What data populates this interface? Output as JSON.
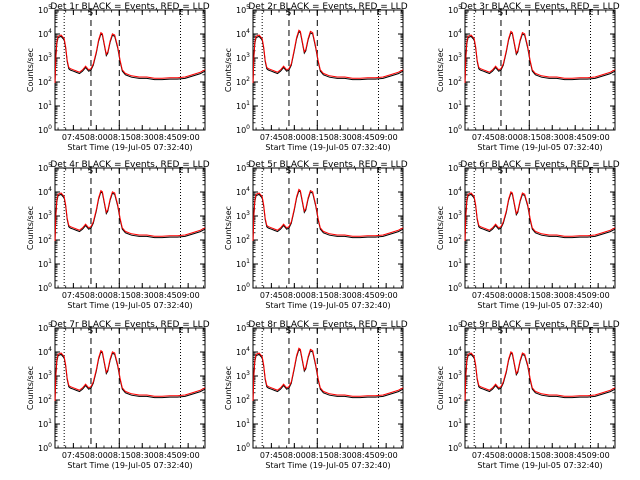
{
  "figure": {
    "xlabel": "Start Time (19-Jul-05 07:32:40)",
    "ylabel": "Counts/sec",
    "x_tick_labels": [
      "07:45",
      "08:00",
      "08:15",
      "08:30",
      "08:45",
      "09:00"
    ],
    "y_tick_exponents": [
      0,
      1,
      2,
      3,
      4,
      5
    ],
    "marker_letters": [
      "S",
      "E"
    ],
    "colors": {
      "events": "#000000",
      "lld": "#ff0000",
      "axes": "#000000"
    }
  },
  "chart_data": [
    {
      "type": "line",
      "title": "Det 1r BLACK = Events, RED = LLD",
      "xlabel": "Start Time (19-Jul-05 07:32:40)",
      "ylabel": "Counts/sec",
      "ylim": [
        1,
        100000
      ],
      "yscale": "log",
      "xlim_minutes_after_start": [
        0,
        98
      ],
      "series": [
        {
          "name": "Events",
          "color": "#000000"
        },
        {
          "name": "LLD",
          "color": "#ff0000"
        }
      ]
    },
    {
      "type": "line",
      "title": "Det 2r BLACK = Events, RED = LLD",
      "xlabel": "Start Time (19-Jul-05 07:32:40)",
      "ylabel": "Counts/sec",
      "ylim": [
        1,
        100000
      ],
      "yscale": "log",
      "xlim_minutes_after_start": [
        0,
        98
      ],
      "series": [
        {
          "name": "Events",
          "color": "#000000"
        },
        {
          "name": "LLD",
          "color": "#ff0000"
        }
      ]
    },
    {
      "type": "line",
      "title": "Det 3r BLACK = Events, RED = LLD",
      "xlabel": "Start Time (19-Jul-05 07:32:40)",
      "ylabel": "Counts/sec",
      "ylim": [
        1,
        100000
      ],
      "yscale": "log",
      "xlim_minutes_after_start": [
        0,
        98
      ],
      "series": [
        {
          "name": "Events",
          "color": "#000000"
        },
        {
          "name": "LLD",
          "color": "#ff0000"
        }
      ]
    },
    {
      "type": "line",
      "title": "Det 4r BLACK = Events, RED = LLD",
      "xlabel": "Start Time (19-Jul-05 07:32:40)",
      "ylabel": "Counts/sec",
      "ylim": [
        1,
        100000
      ],
      "yscale": "log",
      "xlim_minutes_after_start": [
        0,
        98
      ],
      "series": [
        {
          "name": "Events",
          "color": "#000000"
        },
        {
          "name": "LLD",
          "color": "#ff0000"
        }
      ]
    },
    {
      "type": "line",
      "title": "Det 5r BLACK = Events, RED = LLD",
      "xlabel": "Start Time (19-Jul-05 07:32:40)",
      "ylabel": "Counts/sec",
      "ylim": [
        1,
        100000
      ],
      "yscale": "log",
      "xlim_minutes_after_start": [
        0,
        98
      ],
      "series": [
        {
          "name": "Events",
          "color": "#000000"
        },
        {
          "name": "LLD",
          "color": "#ff0000"
        }
      ]
    },
    {
      "type": "line",
      "title": "Det 6r BLACK = Events, RED = LLD",
      "xlabel": "Start Time (19-Jul-05 07:32:40)",
      "ylabel": "Counts/sec",
      "ylim": [
        1,
        100000
      ],
      "yscale": "log",
      "xlim_minutes_after_start": [
        0,
        98
      ],
      "series": [
        {
          "name": "Events",
          "color": "#000000"
        },
        {
          "name": "LLD",
          "color": "#ff0000"
        }
      ]
    },
    {
      "type": "line",
      "title": "Det 7r BLACK = Events, RED = LLD",
      "xlabel": "Start Time (19-Jul-05 07:32:40)",
      "ylabel": "Counts/sec",
      "ylim": [
        1,
        100000
      ],
      "yscale": "log",
      "xlim_minutes_after_start": [
        0,
        98
      ],
      "series": [
        {
          "name": "Events",
          "color": "#000000"
        },
        {
          "name": "LLD",
          "color": "#ff0000"
        }
      ]
    },
    {
      "type": "line",
      "title": "Det 8r BLACK = Events, RED = LLD",
      "xlabel": "Start Time (19-Jul-05 07:32:40)",
      "ylabel": "Counts/sec",
      "ylim": [
        1,
        100000
      ],
      "yscale": "log",
      "xlim_minutes_after_start": [
        0,
        98
      ],
      "series": [
        {
          "name": "Events",
          "color": "#000000"
        },
        {
          "name": "LLD",
          "color": "#ff0000"
        }
      ]
    },
    {
      "type": "line",
      "title": "Det 9r BLACK = Events, RED = LLD",
      "xlabel": "Start Time (19-Jul-05 07:32:40)",
      "ylabel": "Counts/sec",
      "ylim": [
        1,
        100000
      ],
      "yscale": "log",
      "xlim_minutes_after_start": [
        0,
        98
      ],
      "series": [
        {
          "name": "Events",
          "color": "#000000"
        },
        {
          "name": "LLD",
          "color": "#ff0000"
        }
      ]
    }
  ]
}
